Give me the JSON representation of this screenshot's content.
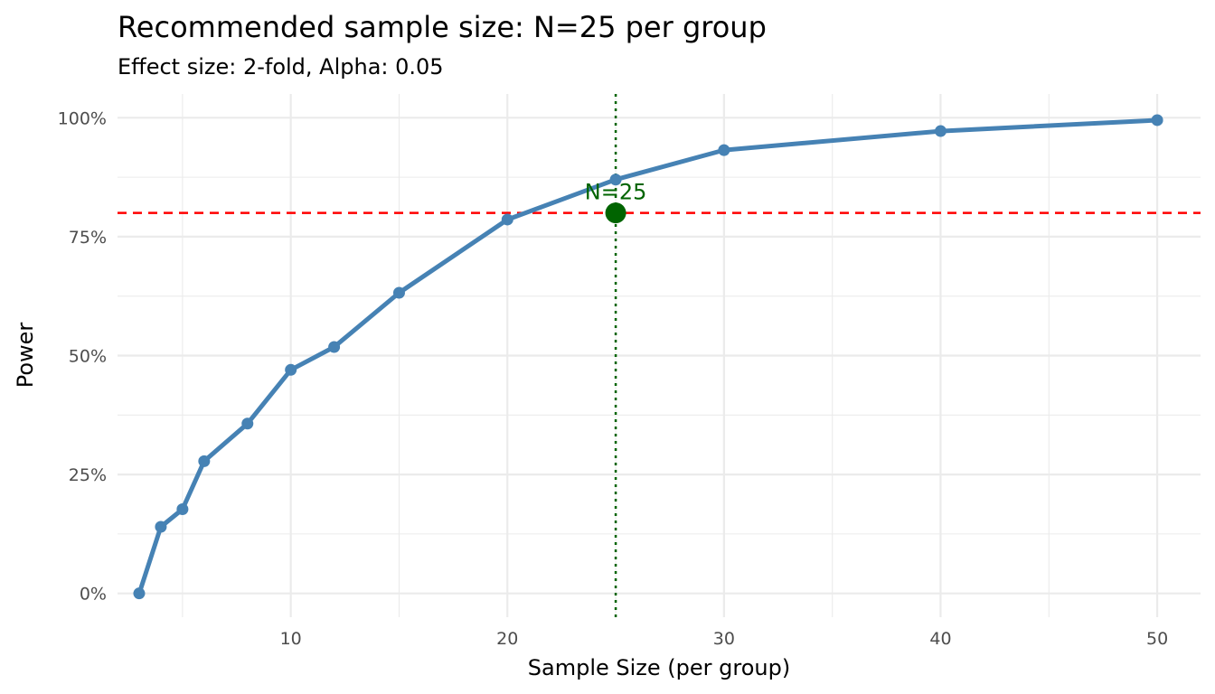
{
  "chart_data": {
    "type": "line",
    "title": "Recommended sample size: N=25 per group",
    "subtitle": "Effect size: 2-fold, Alpha: 0.05",
    "xlabel": "Sample Size (per group)",
    "ylabel": "Power",
    "x": [
      3,
      4,
      5,
      6,
      8,
      10,
      12,
      15,
      20,
      25,
      30,
      40,
      50
    ],
    "series": [
      {
        "values": [
          0.0,
          0.14,
          0.177,
          0.278,
          0.357,
          0.47,
          0.518,
          0.632,
          0.786,
          0.87,
          0.932,
          0.972,
          0.995
        ],
        "color": "#4682b4"
      }
    ],
    "xlim": [
      2,
      52
    ],
    "ylim": [
      -0.05,
      1.05
    ],
    "x_ticks": [
      10,
      20,
      30,
      40,
      50
    ],
    "x_tick_labels": [
      "10",
      "20",
      "30",
      "40",
      "50"
    ],
    "x_minor_ticks": [
      5,
      15,
      25,
      35,
      45
    ],
    "y_ticks": [
      0,
      0.25,
      0.5,
      0.75,
      1.0
    ],
    "y_tick_labels": [
      "0%",
      "25%",
      "50%",
      "75%",
      "100%"
    ],
    "y_minor_ticks": [
      0.125,
      0.375,
      0.625,
      0.875
    ],
    "grid": true,
    "threshold": {
      "y": 0.8,
      "color": "#ff0000",
      "style": "dashed"
    },
    "recommended": {
      "x": 25,
      "y": 0.8,
      "label": "N=25",
      "color": "#006400",
      "vline_style": "dotted"
    }
  }
}
